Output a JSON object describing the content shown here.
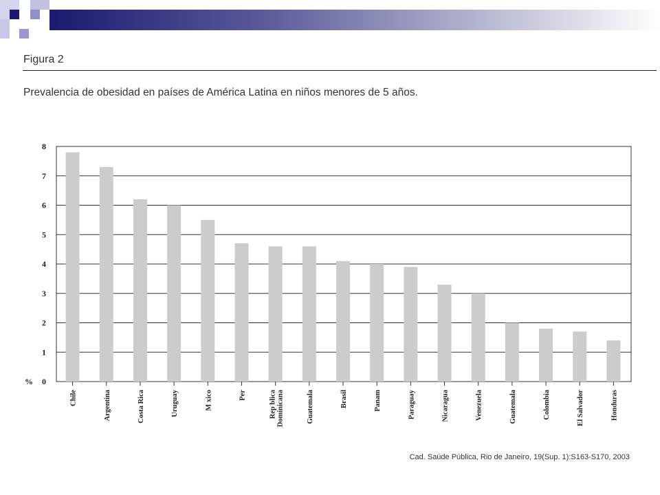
{
  "figure_label": "Figura 2",
  "source": "Cad. Saúde Pública, Rio de Janeiro, 19(Sup. 1):S163-S170, 2003",
  "colors": {
    "bar": "#cccccc",
    "grid": "#333333",
    "header_dark": "#1a1a70",
    "accent_square_light": "#c8c8e8",
    "accent_square_mid": "#9090c8"
  },
  "chart_data": {
    "type": "bar",
    "title": "Prevalencia de obesidad en países de América Latina en niños menores de 5 años.",
    "ylabel": "%",
    "xlabel": "",
    "ylim": [
      0,
      8
    ],
    "yticks": [
      0,
      1,
      2,
      3,
      4,
      5,
      6,
      7,
      8
    ],
    "grid": true,
    "categories": [
      "Chile",
      "Argentina",
      "Costa Rica",
      "Uruguay",
      "M xico",
      "Per",
      "Rep blica|Dominicana",
      "Guatemala",
      "Brasil",
      "Panam",
      "Paraguay",
      "Nicaragua",
      "Venezuela",
      "Guatemala",
      "Colombia",
      "El Salvador",
      "Honduras"
    ],
    "values": [
      7.8,
      7.3,
      6.2,
      6.0,
      5.5,
      4.7,
      4.6,
      4.6,
      4.1,
      4.0,
      3.9,
      3.3,
      3.0,
      2.0,
      1.8,
      1.7,
      1.4
    ]
  }
}
